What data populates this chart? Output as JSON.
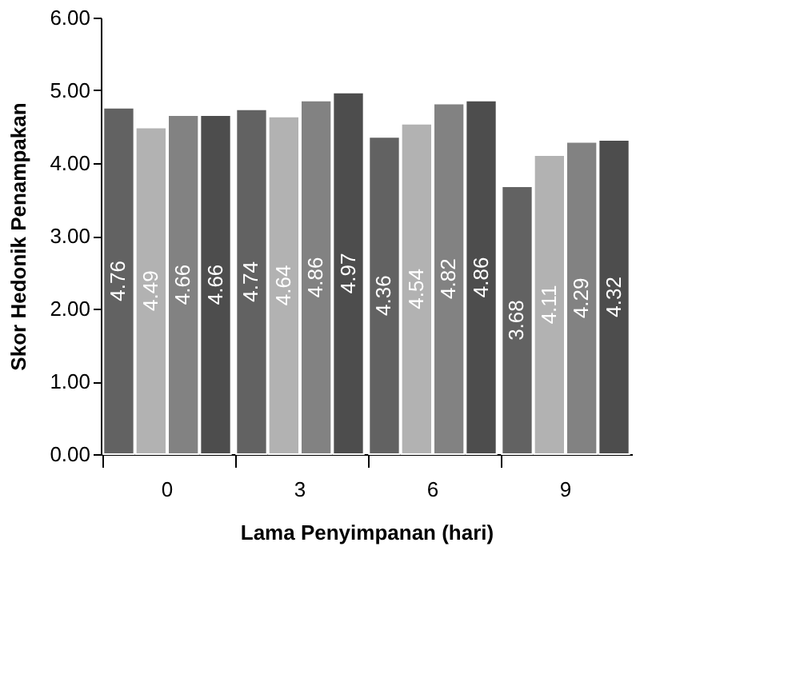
{
  "chart_data": {
    "type": "bar",
    "xlabel": "Lama Penyimpanan (hari)",
    "ylabel": "Skor Hedonik Penampakan",
    "categories": [
      "0",
      "3",
      "6",
      "9"
    ],
    "series": [
      {
        "color": "#626262",
        "values": [
          4.76,
          4.74,
          4.36,
          3.68
        ]
      },
      {
        "color": "#b2b2b2",
        "values": [
          4.49,
          4.64,
          4.54,
          4.11
        ]
      },
      {
        "color": "#828282",
        "values": [
          4.66,
          4.86,
          4.82,
          4.29
        ]
      },
      {
        "color": "#4d4d4d",
        "values": [
          4.66,
          4.97,
          4.86,
          4.32
        ]
      }
    ],
    "ylim": [
      0,
      6
    ],
    "yticks": [
      {
        "value": 0,
        "label": "0.00"
      },
      {
        "value": 1,
        "label": "1.00"
      },
      {
        "value": 2,
        "label": "2.00"
      },
      {
        "value": 3,
        "label": "3.00"
      },
      {
        "value": 4,
        "label": "4.00"
      },
      {
        "value": 5,
        "label": "5.00"
      },
      {
        "value": 6,
        "label": "6.00"
      }
    ],
    "data_labels": true,
    "grid": false,
    "legend": false
  }
}
